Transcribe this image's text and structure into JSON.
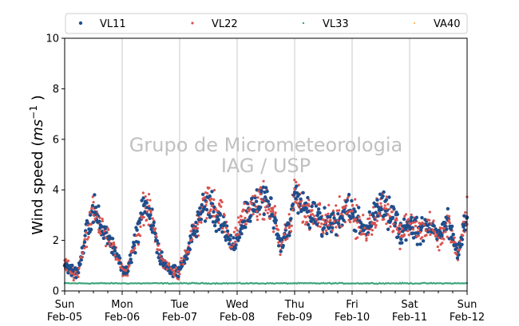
{
  "chart_data": {
    "type": "scatter",
    "title": "",
    "xlabel": "",
    "ylabel_prefix": "Wind speed (",
    "ylabel_unit_base": "ms",
    "ylabel_unit_exp": "−1",
    "ylabel_suffix": " )",
    "ylim": [
      0,
      10
    ],
    "yticks": [
      "0",
      "2",
      "4",
      "6",
      "8",
      "10"
    ],
    "xlim": [
      "2023-02-05",
      "2023-02-12"
    ],
    "xtick_days": [
      "Sun",
      "Mon",
      "Tue",
      "Wed",
      "Thu",
      "Fri",
      "Sat",
      "Sun"
    ],
    "xtick_dates": [
      "Feb-05",
      "Feb-06",
      "Feb-07",
      "Feb-08",
      "Feb-09",
      "Feb-10",
      "Feb-11",
      "Feb-12"
    ],
    "grid": "vertical at day boundaries",
    "legend_placement": "top, above plot, 4 columns",
    "watermark_line1": "Grupo de Micrometeorologia",
    "watermark_line2": "IAG / USP",
    "series": [
      {
        "name": "VL11",
        "color": "#1f4e8c",
        "marker_size": 2.2
      },
      {
        "name": "VL22",
        "color": "#d9534f",
        "marker_size": 1.6
      },
      {
        "name": "VL33",
        "color": "#3aa37a",
        "marker_size": 1.2
      },
      {
        "name": "VA40",
        "color": "#f0a830",
        "marker_size": 1.0
      }
    ],
    "daily_profile_x_hours": [
      0,
      4,
      6,
      9,
      12,
      16,
      21,
      24,
      26,
      30,
      33,
      36,
      40,
      45,
      48,
      51,
      54,
      60,
      64,
      66,
      70,
      72,
      76,
      78,
      84,
      88,
      90,
      94,
      96,
      100,
      102,
      104,
      108,
      112,
      117,
      120,
      124,
      126,
      130,
      132,
      136,
      140,
      144,
      148,
      152,
      156,
      160,
      164,
      168
    ],
    "daily_profile_y": [
      1.1,
      0.7,
      0.9,
      2.3,
      3.2,
      2.4,
      1.7,
      0.8,
      0.8,
      2.1,
      3.3,
      3.0,
      1.3,
      0.7,
      0.8,
      1.5,
      2.4,
      3.6,
      3.0,
      2.8,
      1.8,
      2.2,
      3.3,
      3.3,
      3.6,
      2.8,
      1.8,
      2.5,
      3.8,
      3.2,
      2.9,
      3.1,
      2.6,
      2.7,
      3.3,
      3.1,
      2.5,
      2.4,
      3.1,
      3.2,
      3.2,
      2.3,
      2.7,
      2.3,
      2.7,
      2.0,
      2.8,
      1.4,
      3.0
    ],
    "vl33_level": 0.3
  }
}
